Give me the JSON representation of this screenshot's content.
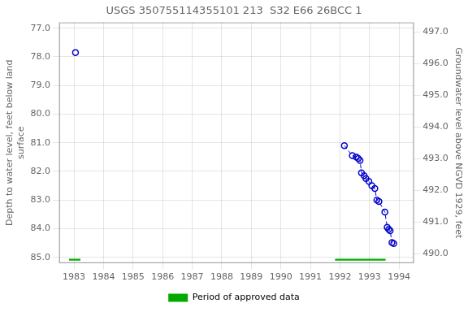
{
  "chart_data": {
    "type": "line",
    "title": "USGS 350755114355101 213  S32 E66 26BCC 1",
    "ylabel": "Depth to water level, feet below land\nsurface",
    "y2label": "Groundwater level above NGVD 1929, feet",
    "xlim": [
      1982.5,
      1994.5
    ],
    "xticks": [
      1983,
      1984,
      1985,
      1986,
      1987,
      1988,
      1989,
      1990,
      1991,
      1992,
      1993,
      1994
    ],
    "ylim": [
      85.2,
      76.8
    ],
    "yticks": [
      {
        "value": 77.0,
        "label": "77.0"
      },
      {
        "value": 78.0,
        "label": "78.0"
      },
      {
        "value": 79.0,
        "label": "79.0"
      },
      {
        "value": 80.0,
        "label": "80.0"
      },
      {
        "value": 81.0,
        "label": "81.0"
      },
      {
        "value": 82.0,
        "label": "82.0"
      },
      {
        "value": 83.0,
        "label": "83.0"
      },
      {
        "value": 84.0,
        "label": "84.0"
      },
      {
        "value": 85.0,
        "label": "85.0"
      }
    ],
    "y2lim": [
      489.7,
      497.3
    ],
    "y2ticks": [
      {
        "value": 490.0,
        "label": "490.0"
      },
      {
        "value": 491.0,
        "label": "491.0"
      },
      {
        "value": 492.0,
        "label": "492.0"
      },
      {
        "value": 493.0,
        "label": "493.0"
      },
      {
        "value": 494.0,
        "label": "494.0"
      },
      {
        "value": 495.0,
        "label": "495.0"
      },
      {
        "value": 496.0,
        "label": "496.0"
      },
      {
        "value": 497.0,
        "label": "497.0"
      }
    ],
    "grid": true,
    "legend": "bottom",
    "series": [
      {
        "x": [
          1983.05
        ],
        "values": [
          77.85
        ],
        "color": "#0000cc",
        "marker": "circle",
        "line_style": "none"
      },
      {
        "x": [
          1992.15,
          1992.42,
          1992.55,
          1992.62,
          1992.68,
          1992.73,
          1992.82,
          1992.88,
          1992.98,
          1993.08,
          1993.18,
          1993.25,
          1993.32,
          1993.52,
          1993.6,
          1993.65,
          1993.7,
          1993.76,
          1993.82
        ],
        "values": [
          81.1,
          81.45,
          81.5,
          81.55,
          81.62,
          82.05,
          82.15,
          82.25,
          82.35,
          82.5,
          82.6,
          83.0,
          83.05,
          83.42,
          83.95,
          84.02,
          84.07,
          84.48,
          84.52
        ],
        "color": "#0000cc",
        "marker": "circle",
        "line_style": "dashed"
      }
    ],
    "approved_periods": {
      "name": "Period of approved data",
      "color": "#00aa00",
      "x": [
        [
          1982.83,
          1983.22
        ],
        [
          1991.83,
          1993.55
        ]
      ],
      "y": [
        85.05,
        85.11
      ]
    }
  }
}
